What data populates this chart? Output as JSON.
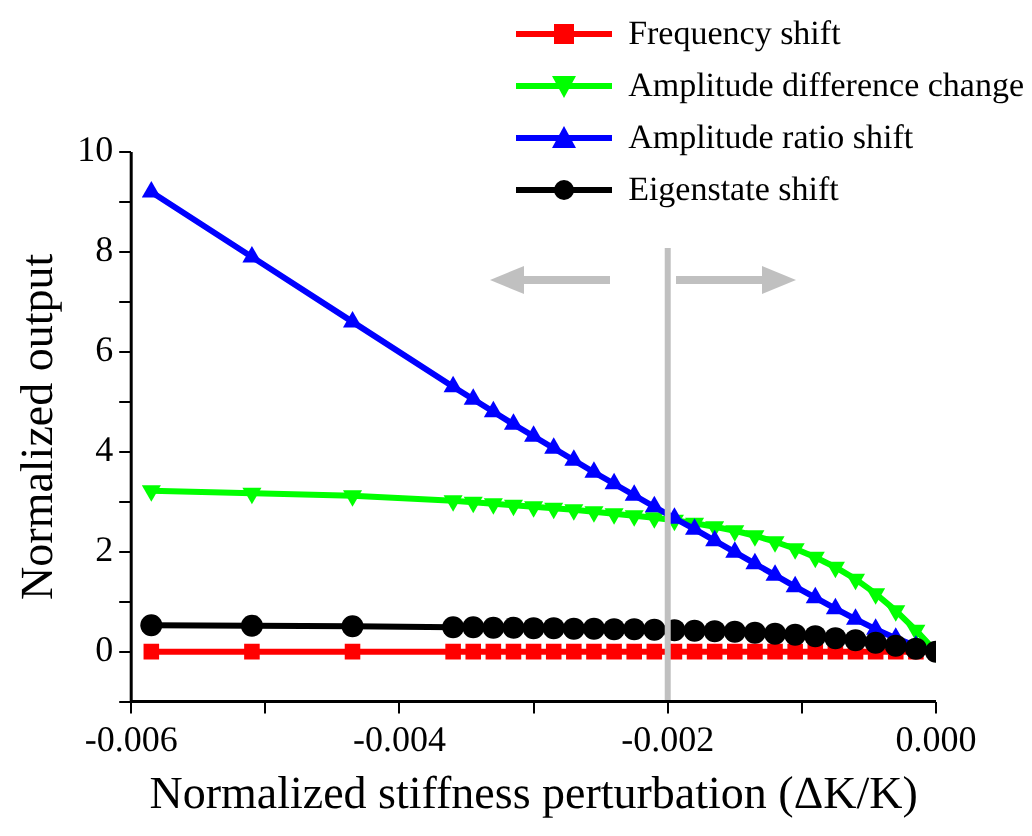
{
  "chart_data": {
    "type": "line",
    "xlabel": "Normalized stiffness perturbation (ΔK/K)",
    "ylabel": "Normalized output",
    "x": [
      -0.00585,
      -0.0051,
      -0.00435,
      -0.0036,
      -0.00345,
      -0.0033,
      -0.00315,
      -0.003,
      -0.00285,
      -0.0027,
      -0.00255,
      -0.0024,
      -0.00225,
      -0.0021,
      -0.00195,
      -0.0018,
      -0.00165,
      -0.0015,
      -0.00135,
      -0.0012,
      -0.00105,
      -0.0009,
      -0.00075,
      -0.0006,
      -0.00045,
      -0.0003,
      -0.00015,
      0
    ],
    "series": [
      {
        "name": "Frequency shift",
        "color": "#ff0000",
        "marker": "square",
        "values": [
          0,
          0,
          0,
          0,
          0,
          0,
          0,
          0,
          0,
          0,
          0,
          0,
          0,
          0,
          0,
          0,
          0,
          0,
          0,
          0,
          0,
          0,
          0,
          0,
          0,
          0,
          0,
          0
        ]
      },
      {
        "name": "Amplitude difference change",
        "color": "#00ff00",
        "marker": "triangle-down",
        "values": [
          3.22,
          3.17,
          3.12,
          3.02,
          2.99,
          2.96,
          2.93,
          2.9,
          2.87,
          2.84,
          2.8,
          2.76,
          2.72,
          2.68,
          2.63,
          2.57,
          2.5,
          2.42,
          2.32,
          2.2,
          2.06,
          1.89,
          1.69,
          1.45,
          1.16,
          0.82,
          0.43,
          0
        ]
      },
      {
        "name": "Amplitude ratio shift",
        "color": "#0000ff",
        "marker": "triangle",
        "values": [
          9.2,
          7.9,
          6.6,
          5.3,
          5.05,
          4.8,
          4.55,
          4.31,
          4.07,
          3.83,
          3.59,
          3.36,
          3.13,
          2.9,
          2.67,
          2.45,
          2.22,
          1.99,
          1.76,
          1.53,
          1.3,
          1.08,
          0.86,
          0.65,
          0.45,
          0.27,
          0.11,
          0
        ]
      },
      {
        "name": "Eigenstate shift",
        "color": "#000000",
        "marker": "circle",
        "values": [
          0.53,
          0.52,
          0.51,
          0.49,
          0.49,
          0.48,
          0.48,
          0.47,
          0.47,
          0.46,
          0.46,
          0.45,
          0.45,
          0.44,
          0.43,
          0.42,
          0.41,
          0.4,
          0.38,
          0.36,
          0.34,
          0.31,
          0.27,
          0.23,
          0.18,
          0.12,
          0.06,
          0
        ]
      }
    ],
    "xlim": [
      -0.006,
      0
    ],
    "xticks": [
      -0.006,
      {
        "value": -0.005,
        "label": null
      },
      -0.004,
      {
        "value": -0.003,
        "label": null
      },
      -0.002,
      {
        "value": -0.001,
        "label": null
      },
      {
        "value": 0,
        "label": "0.000"
      }
    ],
    "ylim": [
      -1,
      10
    ],
    "yticks": [
      {
        "value": -1,
        "label": null
      },
      0,
      {
        "value": 1,
        "label": null
      },
      2,
      {
        "value": 3,
        "label": null
      },
      4,
      {
        "value": 5,
        "label": null
      },
      6,
      {
        "value": 7,
        "label": null
      },
      8,
      {
        "value": 9,
        "label": null
      },
      10
    ],
    "ref_lines": [
      {
        "axis": "x",
        "value": -0.002,
        "color": "#c0c0c0"
      }
    ],
    "legend": "top right",
    "grid": false
  }
}
